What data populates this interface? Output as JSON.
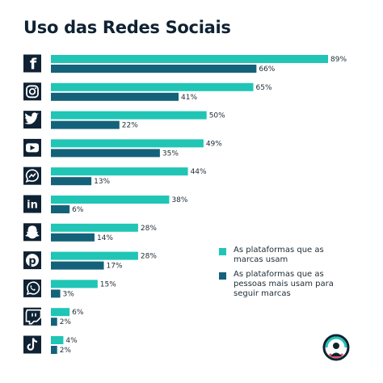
{
  "title": "Uso das Redes Sociais",
  "colors": {
    "series_a": "#20c5b5",
    "series_b": "#13627a",
    "icon_bg": "#0f2233"
  },
  "legend": [
    {
      "label": "As plataformas que as marcas usam",
      "color": "#20c5b5"
    },
    {
      "label": "As plataformas que as pessoas mais usam para seguir marcas",
      "color": "#13627a"
    }
  ],
  "chart_data": {
    "type": "bar",
    "orientation": "horizontal",
    "categories": [
      "facebook-icon",
      "instagram-icon",
      "twitter-icon",
      "youtube-icon",
      "messenger-icon",
      "linkedin-icon",
      "snapchat-icon",
      "pinterest-icon",
      "whatsapp-icon",
      "twitch-icon",
      "tiktok-icon"
    ],
    "series": [
      {
        "name": "As plataformas que as marcas usam",
        "values": [
          89,
          65,
          50,
          49,
          44,
          38,
          28,
          28,
          15,
          6,
          4
        ]
      },
      {
        "name": "As plataformas que as pessoas mais usam para seguir marcas",
        "values": [
          66,
          41,
          22,
          35,
          13,
          6,
          14,
          17,
          3,
          2,
          2
        ]
      }
    ],
    "value_suffix": "%",
    "xlim": [
      0,
      100
    ],
    "title": "Uso das Redes Sociais",
    "legend_position": "right"
  }
}
